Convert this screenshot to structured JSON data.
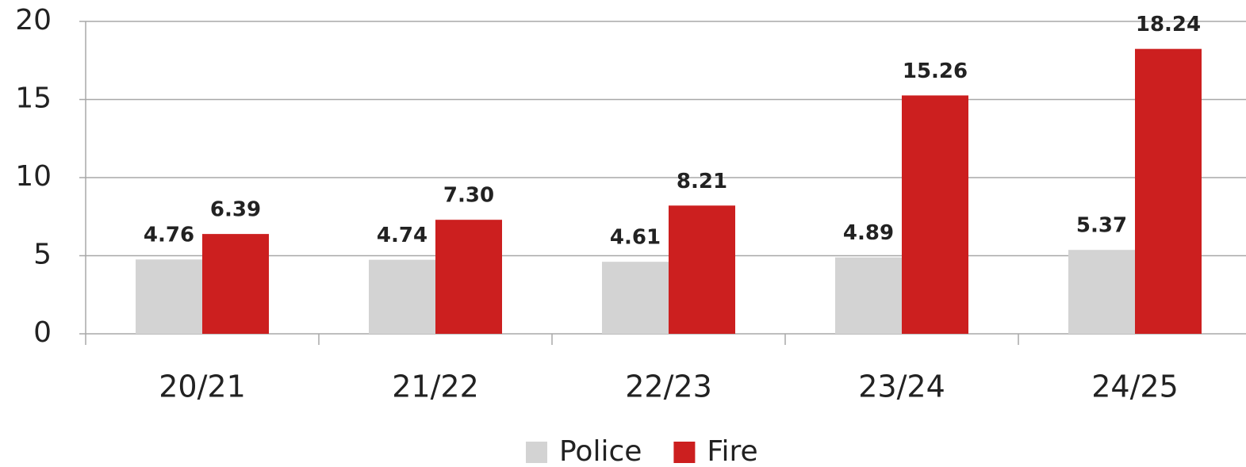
{
  "chart_data": {
    "type": "bar",
    "categories": [
      "20/21",
      "21/22",
      "22/23",
      "23/24",
      "24/25"
    ],
    "series": [
      {
        "name": "Police",
        "color": "#d3d3d3",
        "values": [
          4.76,
          4.74,
          4.61,
          4.89,
          5.37
        ],
        "value_labels": [
          "4.76",
          "4.74",
          "4.61",
          "4.89",
          "5.37"
        ]
      },
      {
        "name": "Fire",
        "color": "#cc1f1f",
        "values": [
          6.39,
          7.3,
          8.21,
          15.26,
          18.24
        ],
        "value_labels": [
          "6.39",
          "7.30",
          "8.21",
          "15.26",
          "18.24"
        ]
      }
    ],
    "ylim": [
      0,
      20
    ],
    "yticks": [
      0,
      5,
      10,
      15,
      20
    ],
    "grid": true,
    "legend": "bottom"
  }
}
